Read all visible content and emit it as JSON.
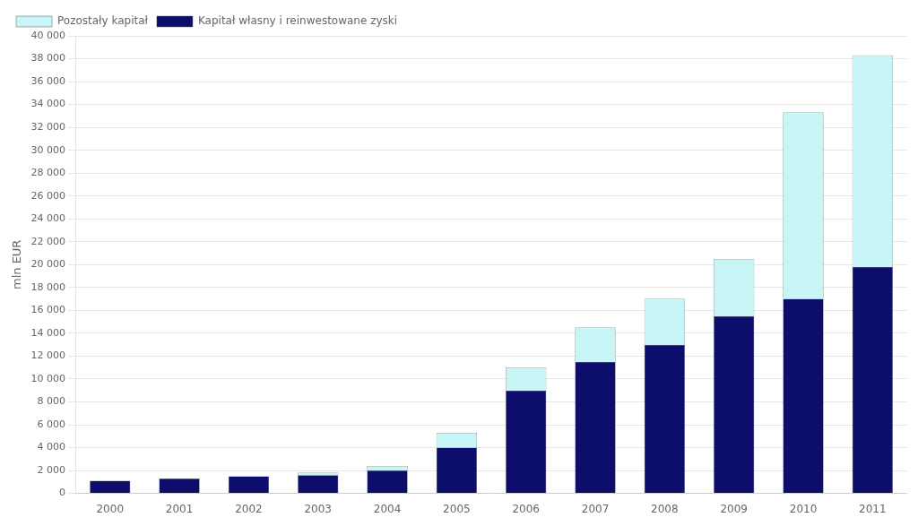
{
  "chart_data": {
    "type": "bar",
    "stacked": true,
    "categories": [
      "2000",
      "2001",
      "2002",
      "2003",
      "2004",
      "2005",
      "2006",
      "2007",
      "2008",
      "2009",
      "2010",
      "2011"
    ],
    "series": [
      {
        "name": "Kapitał własny i reinwestowane zyski",
        "color": "#0D0D6B",
        "values": [
          1100,
          1300,
          1500,
          1600,
          2000,
          4000,
          9000,
          11500,
          13000,
          15500,
          17000,
          19800
        ]
      },
      {
        "name": "Pozostały kapitał",
        "color": "#C8F5F5",
        "values": [
          0,
          0,
          0,
          200,
          400,
          1300,
          2000,
          3000,
          4000,
          5000,
          16300,
          18500
        ]
      }
    ],
    "ylabel": "mln EUR",
    "ylim": [
      0,
      40000
    ],
    "yticks": [
      0,
      {
        "value": 2000,
        "label": "2 000"
      },
      {
        "value": 4000,
        "label": "4 000"
      },
      {
        "value": 6000,
        "label": "6 000"
      },
      {
        "value": 8000,
        "label": "8 000"
      },
      {
        "value": 10000,
        "label": "10 000"
      },
      {
        "value": 12000,
        "label": "12 000"
      },
      {
        "value": 14000,
        "label": "14 000"
      },
      {
        "value": 16000,
        "label": "16 000"
      },
      {
        "value": 18000,
        "label": "18 000"
      },
      {
        "value": 20000,
        "label": "20 000"
      },
      {
        "value": 22000,
        "label": "22 000"
      },
      {
        "value": 24000,
        "label": "24 000"
      },
      {
        "value": 26000,
        "label": "26 000"
      },
      {
        "value": 28000,
        "label": "28 000"
      },
      {
        "value": 30000,
        "label": "30 000"
      },
      {
        "value": 32000,
        "label": "32 000"
      },
      {
        "value": 34000,
        "label": "34 000"
      },
      {
        "value": 36000,
        "label": "36 000"
      },
      {
        "value": 38000,
        "label": "38 000"
      },
      {
        "value": 40000,
        "label": "40 000"
      }
    ],
    "grid": "y",
    "legend": "upper left"
  }
}
